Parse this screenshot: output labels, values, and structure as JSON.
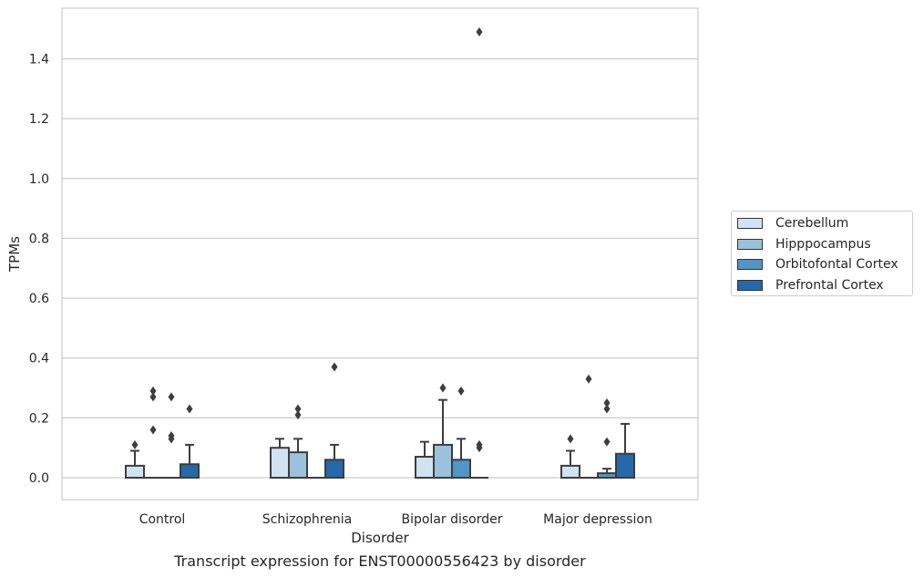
{
  "chart_data": {
    "type": "box",
    "caption": "Transcript expression for ENST00000556423 by disorder",
    "xlabel": "Disorder",
    "ylabel": "TPMs",
    "ylim": [
      -0.07,
      1.57
    ],
    "yticks": [
      0.0,
      0.2,
      0.4,
      0.6,
      0.8,
      1.0,
      1.2,
      1.4
    ],
    "ytick_labels": [
      "0.0",
      "0.2",
      "0.4",
      "0.6",
      "0.8",
      "1.0",
      "1.2",
      "1.4"
    ],
    "grid": "horizontal",
    "legend_position": "right",
    "categories": [
      "Control",
      "Schizophrenia",
      "Bipolar disorder",
      "Major depression"
    ],
    "series": [
      {
        "name": "Cerebellum",
        "color": "#d1e2f2",
        "boxes": [
          {
            "q1": 0.0,
            "median": 0.0,
            "q3": 0.04,
            "whisker_low": 0.0,
            "whisker_high": 0.09,
            "outliers": [
              0.11
            ]
          },
          {
            "q1": 0.0,
            "median": 0.0,
            "q3": 0.1,
            "whisker_low": 0.0,
            "whisker_high": 0.13,
            "outliers": []
          },
          {
            "q1": 0.0,
            "median": 0.0,
            "q3": 0.07,
            "whisker_low": 0.0,
            "whisker_high": 0.12,
            "outliers": []
          },
          {
            "q1": 0.0,
            "median": 0.0,
            "q3": 0.04,
            "whisker_low": 0.0,
            "whisker_high": 0.09,
            "outliers": [
              0.13
            ]
          }
        ]
      },
      {
        "name": "Hipppocampus",
        "color": "#9ac2dc",
        "boxes": [
          {
            "q1": 0.0,
            "median": 0.0,
            "q3": 0.0,
            "whisker_low": 0.0,
            "whisker_high": 0.0,
            "outliers": [
              0.16,
              0.27,
              0.29
            ]
          },
          {
            "q1": 0.0,
            "median": 0.0,
            "q3": 0.085,
            "whisker_low": 0.0,
            "whisker_high": 0.13,
            "outliers": [
              0.21,
              0.23
            ]
          },
          {
            "q1": 0.0,
            "median": 0.0,
            "q3": 0.11,
            "whisker_low": 0.0,
            "whisker_high": 0.26,
            "outliers": [
              0.3
            ]
          },
          {
            "q1": 0.0,
            "median": 0.0,
            "q3": 0.0,
            "whisker_low": 0.0,
            "whisker_high": 0.0,
            "outliers": [
              0.33
            ]
          }
        ]
      },
      {
        "name": "Orbitofontal Cortex",
        "color": "#5096c6",
        "boxes": [
          {
            "q1": 0.0,
            "median": 0.0,
            "q3": 0.0,
            "whisker_low": 0.0,
            "whisker_high": 0.0,
            "outliers": [
              0.13,
              0.14,
              0.27
            ]
          },
          {
            "q1": 0.0,
            "median": 0.0,
            "q3": 0.0,
            "whisker_low": 0.0,
            "whisker_high": 0.0,
            "outliers": []
          },
          {
            "q1": 0.0,
            "median": 0.0,
            "q3": 0.06,
            "whisker_low": 0.0,
            "whisker_high": 0.13,
            "outliers": [
              0.29
            ]
          },
          {
            "q1": 0.0,
            "median": 0.0,
            "q3": 0.015,
            "whisker_low": 0.0,
            "whisker_high": 0.03,
            "outliers": [
              0.12,
              0.23,
              0.25
            ]
          }
        ]
      },
      {
        "name": "Prefrontal Cortex",
        "color": "#2469a9",
        "boxes": [
          {
            "q1": 0.0,
            "median": 0.0,
            "q3": 0.045,
            "whisker_low": 0.0,
            "whisker_high": 0.11,
            "outliers": [
              0.23
            ]
          },
          {
            "q1": 0.0,
            "median": 0.0,
            "q3": 0.06,
            "whisker_low": 0.0,
            "whisker_high": 0.11,
            "outliers": [
              0.37
            ]
          },
          {
            "q1": 0.0,
            "median": 0.0,
            "q3": 0.0,
            "whisker_low": 0.0,
            "whisker_high": 0.0,
            "outliers": [
              0.1,
              0.11,
              1.49
            ]
          },
          {
            "q1": 0.0,
            "median": 0.0,
            "q3": 0.08,
            "whisker_low": 0.0,
            "whisker_high": 0.18,
            "outliers": []
          }
        ]
      }
    ]
  }
}
